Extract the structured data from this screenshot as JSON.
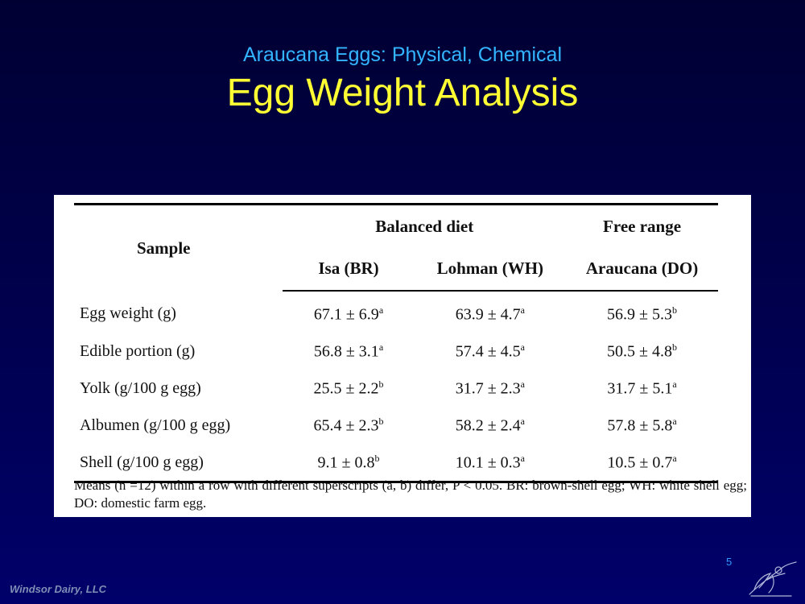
{
  "slide": {
    "subtitle": "Araucana Eggs: Physical, Chemical",
    "title": "Egg Weight Analysis",
    "page_number": "5",
    "company": "Windsor Dairy, LLC"
  },
  "table": {
    "header": {
      "sample": "Sample",
      "group_balanced": "Balanced diet",
      "group_free": "Free range",
      "col1": "Isa (BR)",
      "col2": "Lohman (WH)",
      "col3": "Araucana (DO)"
    },
    "rows": [
      {
        "label": "Egg weight (g)",
        "c1": "67.1 ± 6.9",
        "s1": "a",
        "c2": "63.9 ± 4.7",
        "s2": "a",
        "c3": "56.9 ± 5.3",
        "s3": "b"
      },
      {
        "label": "Edible portion (g)",
        "c1": "56.8 ± 3.1",
        "s1": "a",
        "c2": "57.4 ± 4.5",
        "s2": "a",
        "c3": "50.5 ± 4.8",
        "s3": "b"
      },
      {
        "label": "Yolk (g/100 g egg)",
        "c1": "25.5 ± 2.2",
        "s1": "b",
        "c2": "31.7 ± 2.3",
        "s2": "a",
        "c3": "31.7 ± 5.1",
        "s3": "a"
      },
      {
        "label": "Albumen (g/100 g egg)",
        "c1": "65.4 ± 2.3",
        "s1": "b",
        "c2": "58.2 ± 2.4",
        "s2": "a",
        "c3": "57.8 ± 5.8",
        "s3": "a"
      },
      {
        "label": "Shell (g/100 g egg)",
        "c1": "9.1 ± 0.8",
        "s1": "b",
        "c2": "10.1 ± 0.3",
        "s2": "a",
        "c3": "10.5 ± 0.7",
        "s3": "a"
      }
    ],
    "footnote": "Means (n =12) within a row with different superscripts (a, b) differ, P < 0.05. BR: brown-shell egg; WH: white shell egg; DO: domestic farm egg."
  },
  "icons": {
    "logo": "quill-sketch-icon"
  }
}
